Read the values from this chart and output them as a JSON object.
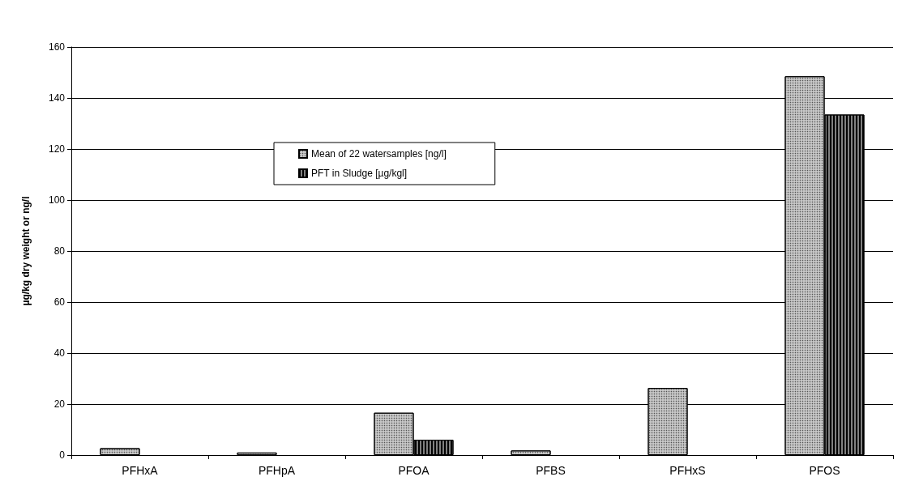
{
  "chart_data": {
    "type": "bar",
    "ylabel": "µg/kg dry weight or ng/l",
    "categories": [
      "PFHxA",
      "PFHpA",
      "PFOA",
      "PFBS",
      "PFHxS",
      "PFOS"
    ],
    "series": [
      {
        "name": "Mean of 22 watersamples [ng/l]",
        "color": "#c8c8c8",
        "values": [
          2.7,
          1.0,
          16.6,
          1.8,
          26.3,
          148.5
        ]
      },
      {
        "name": "PFT in Sludge [µg/kgl]",
        "color": "#808080",
        "values": [
          null,
          null,
          6.0,
          null,
          null,
          133.5
        ]
      }
    ],
    "ylim": [
      0,
      160
    ],
    "yticks": [
      0,
      20,
      40,
      60,
      80,
      100,
      120,
      140,
      160
    ],
    "grid": "y",
    "legend": "top left"
  }
}
